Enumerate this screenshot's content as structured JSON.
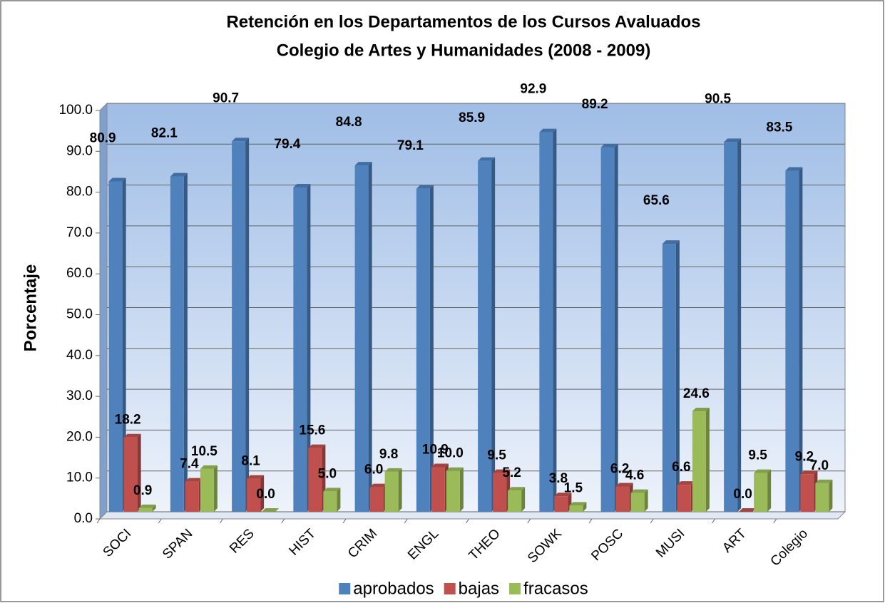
{
  "chart_data": {
    "type": "bar",
    "title": "Retención en  los  Departamentos de los Cursos Avaluados",
    "subtitle": "Colegio de Artes y Humanidades (2008 - 2009)",
    "ylabel": "Porcentaje",
    "categories": [
      "SOCI",
      "SPAN",
      "RES",
      "HIST",
      "CRIM",
      "ENGL",
      "THEO",
      "SOWK",
      "POSC",
      "MUSI",
      "ART",
      "Colegio"
    ],
    "series": [
      {
        "name": "aprobados",
        "color": "#4f81bd",
        "values": [
          80.9,
          82.1,
          90.7,
          79.4,
          84.8,
          79.1,
          85.9,
          92.9,
          89.2,
          65.6,
          90.5,
          83.5
        ],
        "value_labels": [
          "80.9",
          "82.1",
          "90.7",
          "79.4",
          "84.8",
          "79.1",
          "85.9",
          "92.9",
          "89.2",
          "65.6",
          "90.5",
          "83.5"
        ]
      },
      {
        "name": "bajas",
        "color": "#c0504d",
        "values": [
          18.2,
          7.4,
          8.1,
          15.6,
          6.0,
          10.9,
          9.5,
          3.8,
          6.2,
          6.6,
          0.0,
          9.2
        ],
        "value_labels": [
          "18.2",
          "7.4",
          "8.1",
          "15.6",
          "6.0",
          "10.9",
          "9.5",
          "3.8",
          "6.2",
          "6.6",
          "0.0",
          "9.2"
        ]
      },
      {
        "name": "fracasos",
        "color": "#9bbb59",
        "values": [
          0.9,
          10.5,
          0.0,
          5.0,
          9.8,
          10.0,
          5.2,
          1.5,
          4.6,
          24.6,
          9.5,
          7.0
        ],
        "value_labels": [
          "0.9",
          "10.5",
          "0.0",
          "5.0",
          "9.8",
          "10.0",
          "5.2",
          "1.5",
          "4.6",
          "24.6",
          "9.5",
          "7.0"
        ]
      }
    ],
    "ylim": [
      0,
      100
    ],
    "yticks": [
      {
        "value": 0,
        "label": "0.0"
      },
      {
        "value": 10,
        "label": "10.0"
      },
      {
        "value": 20,
        "label": "20.0"
      },
      {
        "value": 30,
        "label": "30.0"
      },
      {
        "value": 40,
        "label": "40.0"
      },
      {
        "value": 50,
        "label": "50.0"
      },
      {
        "value": 60,
        "label": "60.0"
      },
      {
        "value": 70,
        "label": "70.0"
      },
      {
        "value": 80,
        "label": "80.0"
      },
      {
        "value": 90,
        "label": "90.0"
      },
      {
        "value": 100,
        "label": "100.0"
      }
    ],
    "grid": true,
    "legend": "bottom"
  }
}
